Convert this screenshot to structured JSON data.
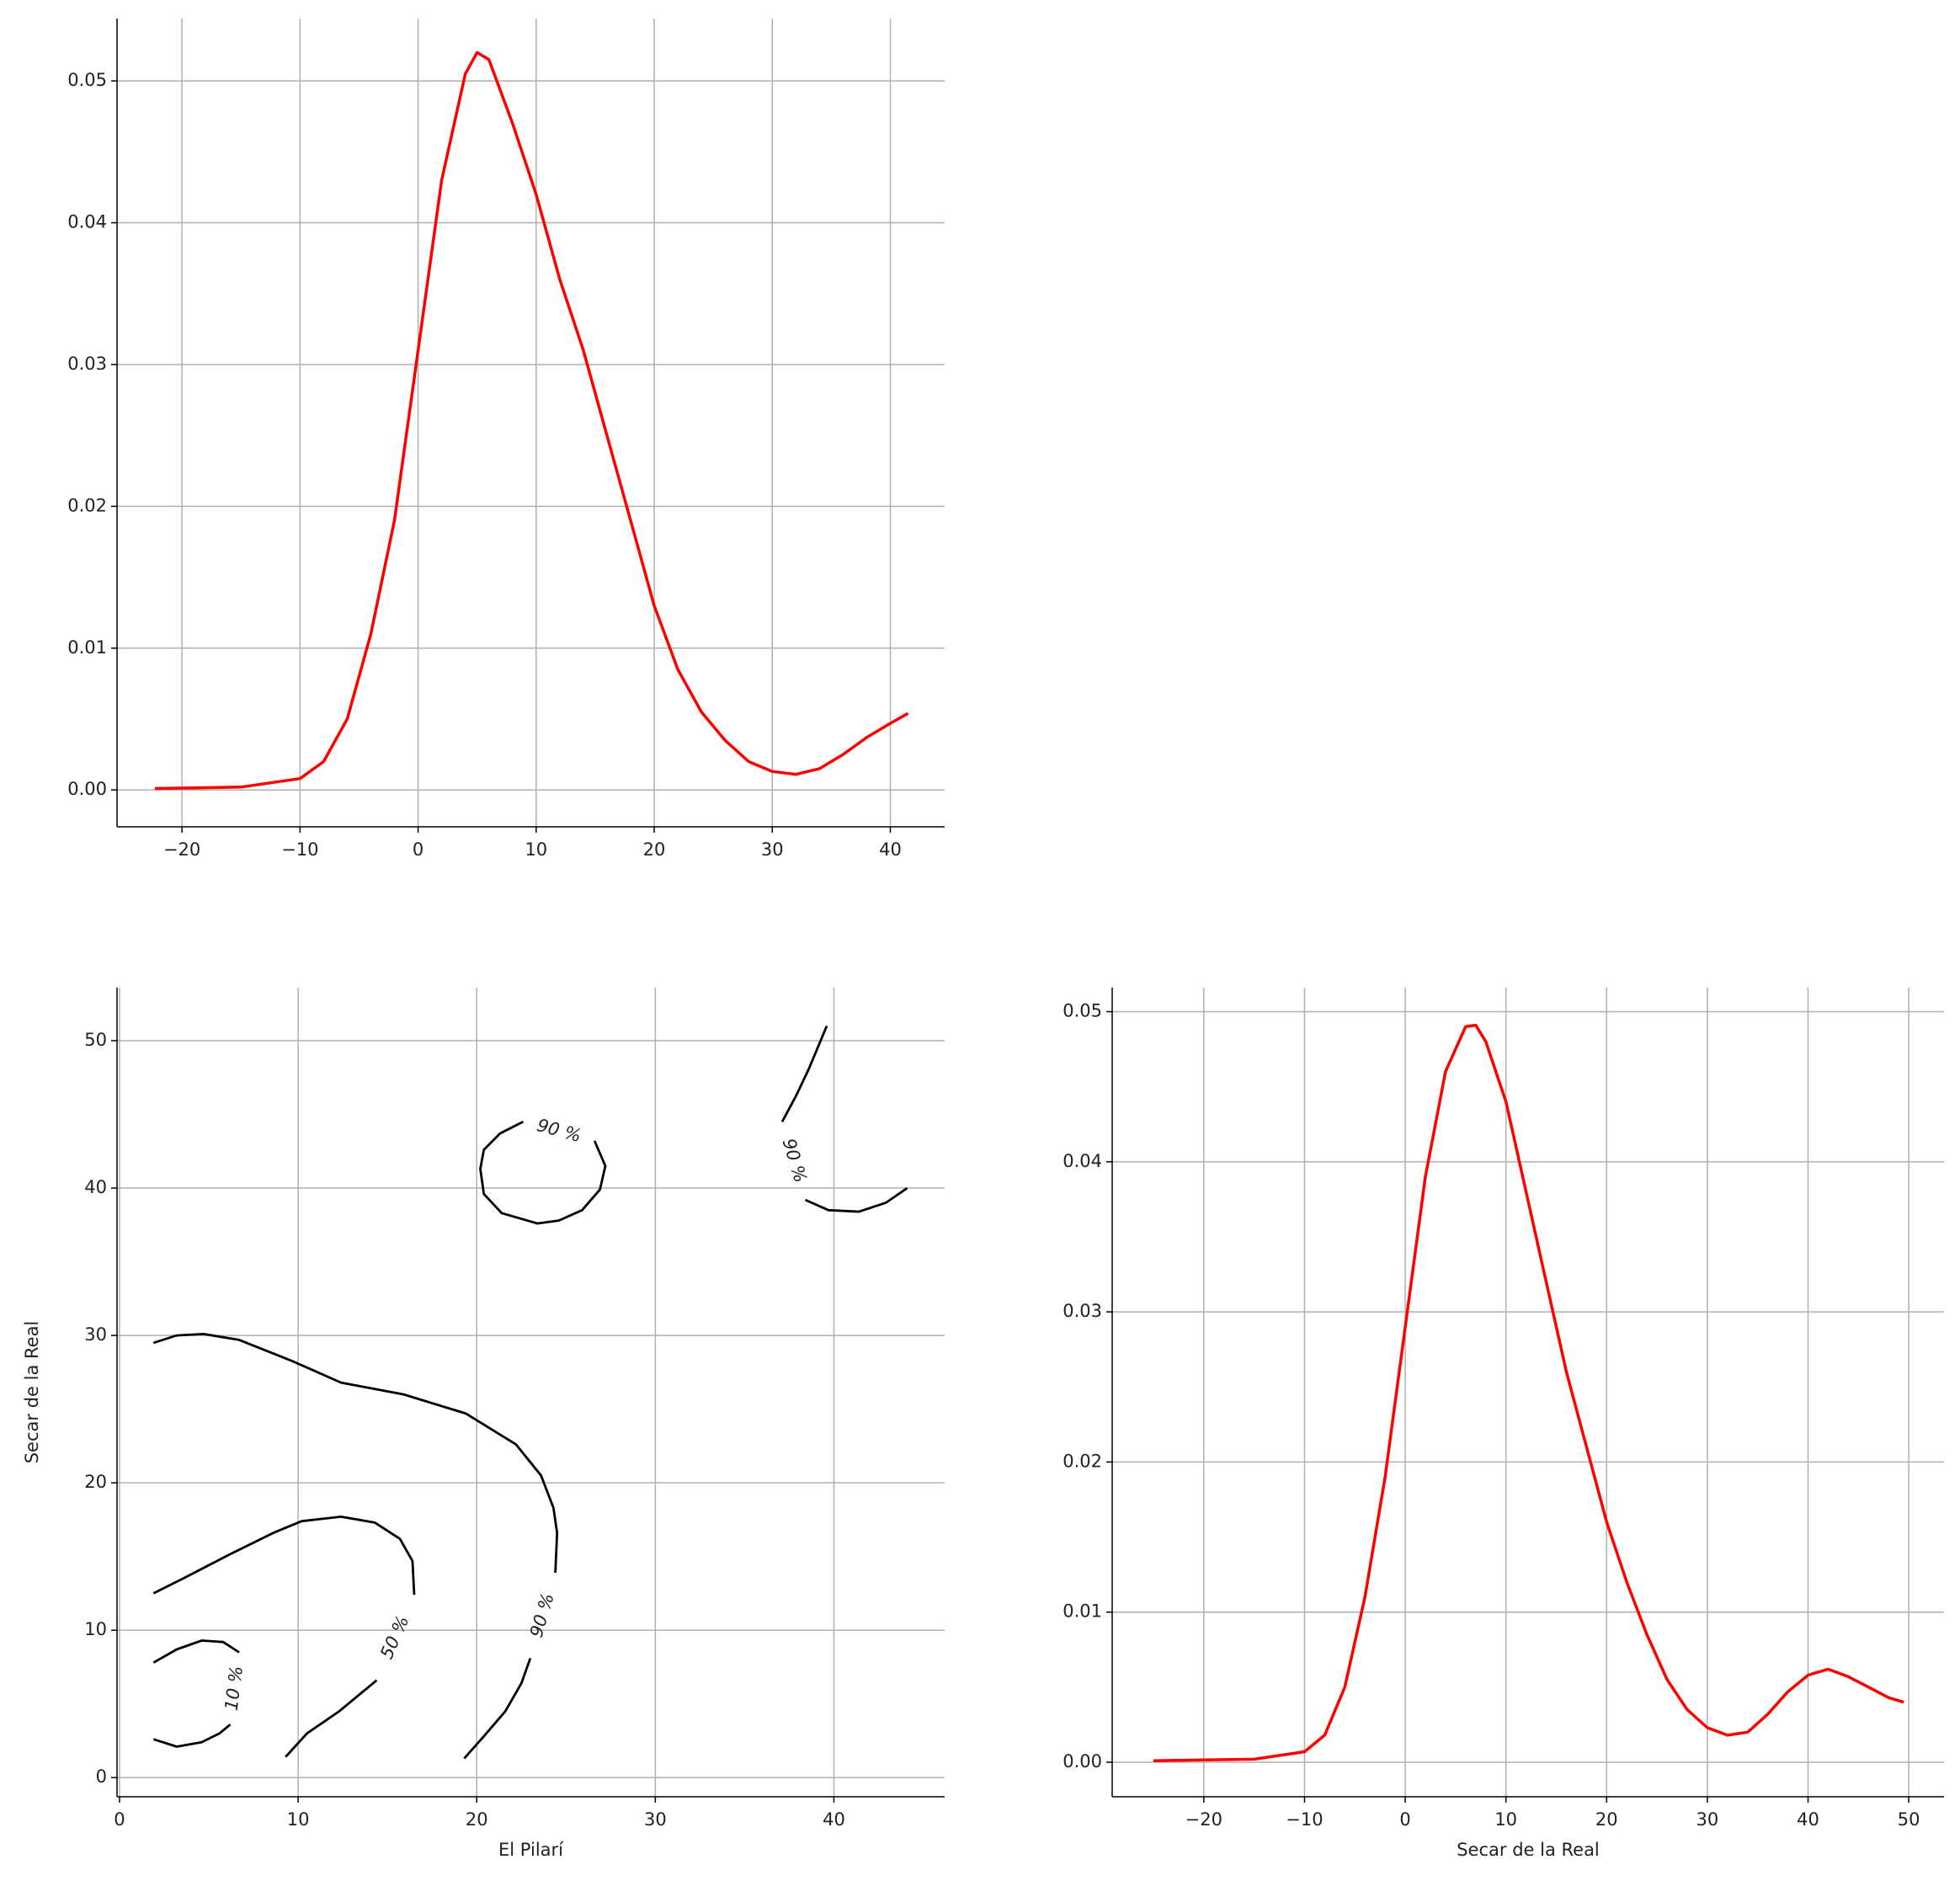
{
  "chart_data": [
    {
      "type": "line",
      "color": "#ff0000",
      "grid": true,
      "x": [
        -22.3,
        -15,
        -10,
        -8,
        -6,
        -4,
        -2,
        0,
        2,
        4,
        5,
        6,
        8,
        10,
        12,
        14,
        16,
        18,
        20,
        22,
        24,
        26,
        28,
        30,
        32,
        34,
        36,
        38,
        40,
        41.5
      ],
      "values": [
        0.0001,
        0.0002,
        0.0008,
        0.002,
        0.005,
        0.011,
        0.019,
        0.031,
        0.043,
        0.0505,
        0.052,
        0.0515,
        0.047,
        0.042,
        0.036,
        0.031,
        0.025,
        0.019,
        0.013,
        0.0085,
        0.0055,
        0.0035,
        0.002,
        0.0013,
        0.0011,
        0.0015,
        0.0025,
        0.0037,
        0.0047,
        0.0054
      ],
      "xlim": [
        -25.5,
        44.6
      ],
      "ylim": [
        -0.0026,
        0.0544
      ],
      "xticks": [
        {
          "value": -20,
          "label": "−20"
        },
        {
          "value": -10,
          "label": "−10"
        },
        0,
        10,
        20,
        30,
        40
      ],
      "yticks": [
        {
          "value": 0,
          "label": "0.00"
        },
        {
          "value": 0.01,
          "label": "0.01"
        },
        {
          "value": 0.02,
          "label": "0.02"
        },
        {
          "value": 0.03,
          "label": "0.03"
        },
        {
          "value": 0.04,
          "label": "0.04"
        },
        {
          "value": 0.05,
          "label": "0.05"
        }
      ]
    },
    {
      "type": "contour",
      "color": "#000000",
      "grid": true,
      "xlabel": "El Pilarí",
      "ylabel": "Secar de la Real",
      "contours": [
        {
          "label": "10 %",
          "x": [
            1.9,
            3.2,
            4.6,
            5.8,
            6.7,
            null,
            6.2,
            5.6,
            4.6,
            3.2,
            1.9
          ],
          "y": [
            7.8,
            8.7,
            9.3,
            9.2,
            8.5,
            null,
            3.6,
            3.0,
            2.4,
            2.1,
            2.6
          ]
        },
        {
          "label": "50 %",
          "x": [
            1.9,
            3.7,
            6.1,
            8.6,
            10.2,
            12.4,
            14.3,
            15.7,
            16.4,
            16.5,
            null,
            14.4,
            12.3,
            10.5,
            9.3
          ],
          "y": [
            12.5,
            13.6,
            15.1,
            16.6,
            17.4,
            17.7,
            17.3,
            16.2,
            14.7,
            12.4,
            null,
            6.6,
            4.5,
            3.0,
            1.4
          ]
        },
        {
          "label": "90 %",
          "x": [
            1.9,
            3.2,
            4.7,
            6.7,
            9.6,
            12.4,
            15.9,
            19.4,
            22.2,
            23.6,
            24.3,
            24.5,
            24.4,
            null,
            23.0,
            22.5,
            21.6,
            20.4,
            19.3
          ],
          "y": [
            29.5,
            30.0,
            30.1,
            29.7,
            28.3,
            26.8,
            26.0,
            24.7,
            22.6,
            20.5,
            18.3,
            16.6,
            13.9,
            null,
            8.1,
            6.4,
            4.5,
            2.8,
            1.3
          ]
        },
        {
          "label": "90 %",
          "x": [
            22.6,
            21.3,
            20.4,
            20.2,
            20.4,
            21.4,
            23.4,
            24.6,
            25.9,
            26.9,
            27.2,
            26.6
          ],
          "y": [
            44.5,
            43.7,
            42.6,
            41.3,
            39.6,
            38.3,
            37.6,
            37.8,
            38.5,
            39.9,
            41.5,
            43.2
          ]
        },
        {
          "label": "90 %",
          "x": [
            39.6,
            38.6,
            37.9,
            37.1,
            null,
            38.4,
            39.7,
            41.4,
            42.9,
            44.1
          ],
          "y": [
            51.0,
            48.1,
            46.3,
            44.5,
            null,
            39.2,
            38.5,
            38.4,
            39.0,
            40.0
          ]
        }
      ],
      "xlim": [
        -0.14,
        46.2
      ],
      "ylim": [
        -1.3,
        53.6
      ],
      "xticks": [
        0,
        10,
        20,
        30,
        40
      ],
      "yticks": [
        0,
        10,
        20,
        30,
        40,
        50
      ]
    },
    {
      "type": "line",
      "color": "#ff0000",
      "grid": true,
      "xlabel": "Secar de la Real",
      "x": [
        -25,
        -15,
        -10,
        -8,
        -6,
        -4,
        -2,
        0,
        2,
        4,
        6,
        7,
        8,
        10,
        12,
        14,
        16,
        18,
        20,
        22,
        24,
        26,
        28,
        30,
        32,
        34,
        36,
        38,
        40,
        42,
        44,
        46,
        48,
        49.5
      ],
      "values": [
        0.0001,
        0.0002,
        0.0007,
        0.0018,
        0.005,
        0.011,
        0.019,
        0.029,
        0.039,
        0.046,
        0.049,
        0.0491,
        0.048,
        0.044,
        0.038,
        0.032,
        0.026,
        0.021,
        0.016,
        0.012,
        0.0085,
        0.0055,
        0.0035,
        0.0023,
        0.0018,
        0.002,
        0.0032,
        0.0047,
        0.0058,
        0.0062,
        0.0057,
        0.005,
        0.0043,
        0.004
      ],
      "xlim": [
        -29.1,
        53.5
      ],
      "ylim": [
        -0.0023,
        0.0516
      ],
      "xticks": [
        {
          "value": -20,
          "label": "−20"
        },
        {
          "value": -10,
          "label": "−10"
        },
        0,
        10,
        20,
        30,
        40,
        50
      ],
      "yticks": [
        {
          "value": 0,
          "label": "0.00"
        },
        {
          "value": 0.01,
          "label": "0.01"
        },
        {
          "value": 0.02,
          "label": "0.02"
        },
        {
          "value": 0.03,
          "label": "0.03"
        },
        {
          "value": 0.04,
          "label": "0.04"
        },
        {
          "value": 0.05,
          "label": "0.05"
        }
      ]
    }
  ]
}
